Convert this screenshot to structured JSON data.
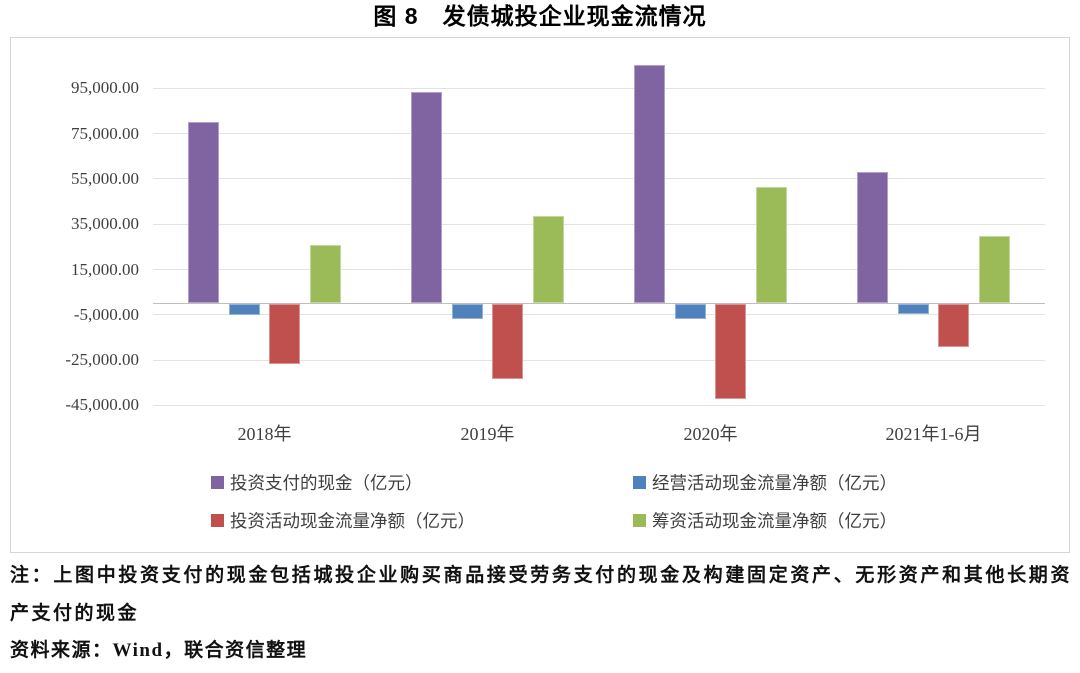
{
  "title": "图 8　发债城投企业现金流情况",
  "chart_data": {
    "type": "bar",
    "title": "图 8　发债城投企业现金流情况",
    "categories": [
      "2018年",
      "2019年",
      "2020年",
      "2021年1-6月"
    ],
    "series": [
      {
        "name": "投资支付的现金（亿元）",
        "color": "#8064A2",
        "edge": "#B2A1C7",
        "values": [
          80000,
          93000,
          105000,
          57700
        ]
      },
      {
        "name": "经营活动现金流量净额（亿元）",
        "color": "#4F81BD",
        "edge": "#95B3D7",
        "values": [
          -4900,
          -6500,
          -6800,
          -4300
        ]
      },
      {
        "name": "投资活动现金流量净额（亿元）",
        "color": "#C0504D",
        "edge": "#D99694",
        "values": [
          -26400,
          -33000,
          -41800,
          -19000
        ]
      },
      {
        "name": "筹资活动现金流量净额（亿元）",
        "color": "#9BBB59",
        "edge": "#C3D69B",
        "values": [
          25800,
          38200,
          51000,
          29400
        ]
      }
    ],
    "y_axis": {
      "unit": "亿元",
      "ticks": [
        {
          "value": 95000,
          "label": "95,000.00"
        },
        {
          "value": 75000,
          "label": "75,000.00"
        },
        {
          "value": 55000,
          "label": "55,000.00"
        },
        {
          "value": 35000,
          "label": "35,000.00"
        },
        {
          "value": 15000,
          "label": "15,000.00"
        },
        {
          "value": -5000,
          "label": "-5,000.00"
        },
        {
          "value": -25000,
          "label": "-25,000.00"
        },
        {
          "value": -45000,
          "label": "-45,000.00"
        }
      ],
      "ylim": [
        -48000,
        110000
      ],
      "zero_line": true
    },
    "grid": "horizontal",
    "legend_position": "bottom-inside-2col"
  },
  "colors": {
    "gridline": "#e3e3e3",
    "zero_line": "#bfbfbf",
    "frame_border": "#d6d6d6",
    "axis_text": "#3f3f3f"
  },
  "notes": {
    "note": "注：上图中投资支付的现金包括城投企业购买商品接受劳务支付的现金及构建固定资产、无形资产和其他长期资产支付的现金",
    "source": "资料来源：Wind，联合资信整理"
  }
}
